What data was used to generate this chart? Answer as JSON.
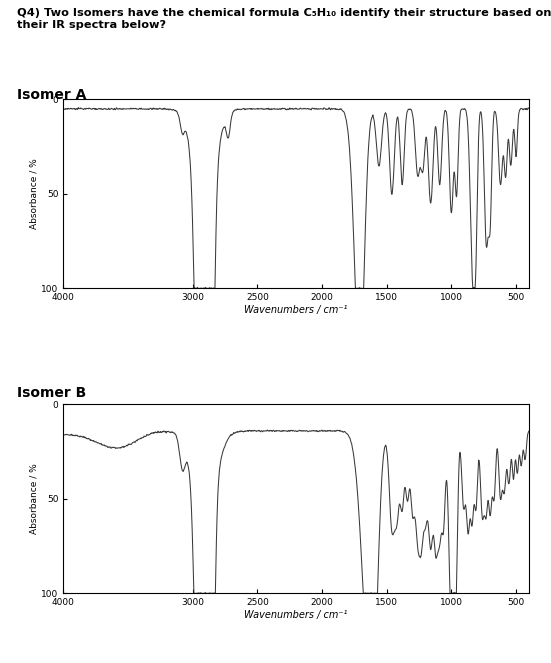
{
  "isomer_a_label": "Isomer A",
  "isomer_b_label": "Isomer B",
  "ylabel": "Absorbance / %",
  "xlabel": "Wavenumbers / cm⁻¹",
  "xlim": [
    4000,
    400
  ],
  "ylim": [
    100,
    0
  ],
  "yticks": [
    0,
    50,
    100
  ],
  "xticks": [
    4000,
    3000,
    2500,
    2000,
    1500,
    1000,
    500
  ],
  "background": "#ffffff",
  "line_color": "#3a3a3a",
  "q_line1": "Q4) Two Isomers have the chemical formula C₅H₁₀ identify their structure based on",
  "q_line2": "their IR spectra below?"
}
